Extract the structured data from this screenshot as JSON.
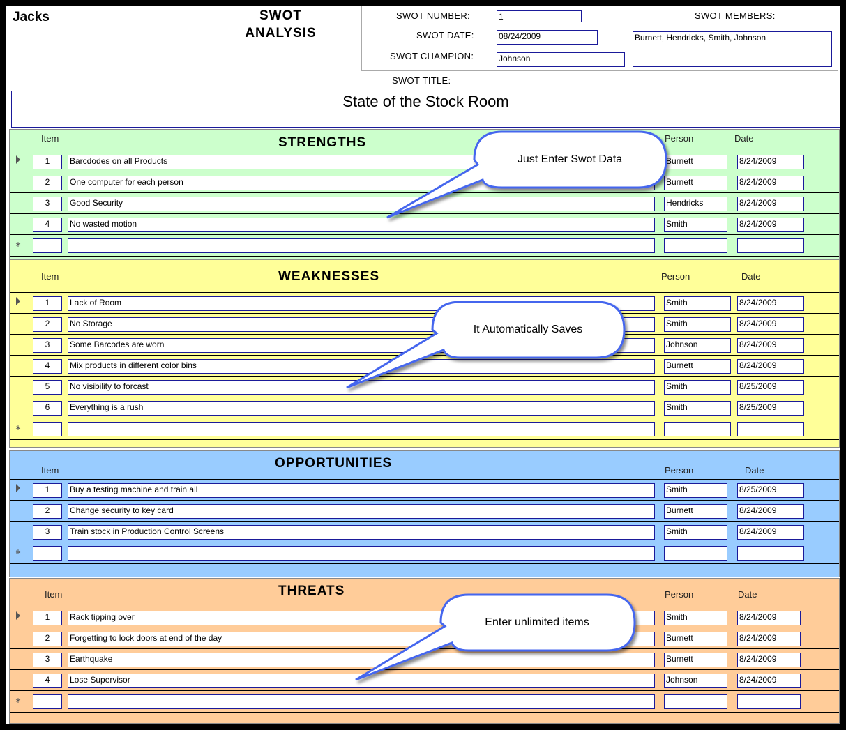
{
  "header": {
    "company": "Jacks",
    "title_line1": "SWOT",
    "title_line2": "ANALYSIS",
    "number_label": "SWOT  NUMBER:",
    "number": "1",
    "date_label": "SWOT DATE:",
    "date": "08/24/2009",
    "champion_label": "SWOT CHAMPION:",
    "champion": "Johnson",
    "members_label": "SWOT MEMBERS:",
    "members": "Burnett, Hendricks, Smith, Johnson",
    "swot_title_label": "SWOT TITLE:",
    "swot_title": "State of the Stock Room"
  },
  "columns": {
    "item": "Item",
    "person": "Person",
    "date": "Date"
  },
  "sections": [
    {
      "key": "strengths",
      "title": "STRENGTHS",
      "color": "#ccffcc",
      "rows": [
        {
          "item": "1",
          "desc": "Barcdodes on all Products",
          "person": "Burnett",
          "date": "8/24/2009"
        },
        {
          "item": "2",
          "desc": "One computer for each person",
          "person": "Burnett",
          "date": "8/24/2009"
        },
        {
          "item": "3",
          "desc": "Good Security",
          "person": "Hendricks",
          "date": "8/24/2009"
        },
        {
          "item": "4",
          "desc": "No wasted motion",
          "person": "Smith",
          "date": "8/24/2009"
        }
      ]
    },
    {
      "key": "weaknesses",
      "title": "WEAKNESSES",
      "color": "#ffff99",
      "rows": [
        {
          "item": "1",
          "desc": "Lack of Room",
          "person": "Smith",
          "date": "8/24/2009"
        },
        {
          "item": "2",
          "desc": "No Storage",
          "person": "Smith",
          "date": "8/24/2009"
        },
        {
          "item": "3",
          "desc": "Some Barcodes are worn",
          "person": "Johnson",
          "date": "8/24/2009"
        },
        {
          "item": "4",
          "desc": "Mix products in different color bins",
          "person": "Burnett",
          "date": "8/24/2009"
        },
        {
          "item": "5",
          "desc": "No visibility to forcast",
          "person": "Smith",
          "date": "8/25/2009"
        },
        {
          "item": "6",
          "desc": "Everything is a rush",
          "person": "Smith",
          "date": "8/25/2009"
        }
      ]
    },
    {
      "key": "opportunities",
      "title": "OPPORTUNITIES",
      "color": "#99ccff",
      "rows": [
        {
          "item": "1",
          "desc": "Buy a testing machine and train all",
          "person": "Smith",
          "date": "8/25/2009"
        },
        {
          "item": "2",
          "desc": "Change security to key card",
          "person": "Burnett",
          "date": "8/24/2009"
        },
        {
          "item": "3",
          "desc": "Train stock in Production Control Screens",
          "person": "Smith",
          "date": "8/24/2009"
        }
      ]
    },
    {
      "key": "threats",
      "title": "THREATS",
      "color": "#ffcc99",
      "rows": [
        {
          "item": "1",
          "desc": "Rack tipping over",
          "person": "Smith",
          "date": "8/24/2009"
        },
        {
          "item": "2",
          "desc": "Forgetting to lock doors at end of the day",
          "person": "Burnett",
          "date": "8/24/2009"
        },
        {
          "item": "3",
          "desc": "Earthquake",
          "person": "Burnett",
          "date": "8/24/2009"
        },
        {
          "item": "4",
          "desc": "Lose Supervisor",
          "person": "Johnson",
          "date": "8/24/2009"
        }
      ]
    }
  ],
  "callouts": [
    "Just Enter Swot Data",
    "It Automatically Saves",
    "Enter unlimited items"
  ],
  "icons": {
    "current_record": "triangle-right",
    "new_record": "asterisk"
  }
}
